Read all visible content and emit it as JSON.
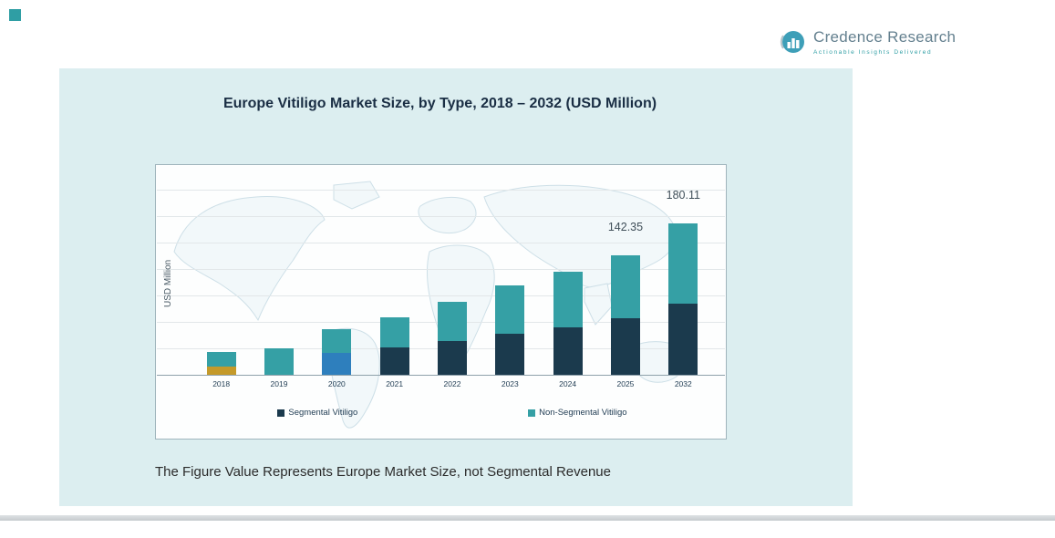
{
  "logo": {
    "name": "Credence Research",
    "tagline": "Actionable Insights Delivered"
  },
  "note": {
    "text": "The Figure Value Represents Europe Market Size, not Segmental Revenue"
  },
  "colors": {
    "panel_background": "#dceef0",
    "accent_teal": "#2f9ea4",
    "segmental_navy": "#1b3a4d",
    "non_segmental_teal": "#35a0a5",
    "override_gold_2018": "#c49a2a",
    "override_blue_2020": "#2e7fbd"
  },
  "chart_data": {
    "type": "bar",
    "stacked": true,
    "title": "Europe Vitiligo Market Size, by Type, 2018 – 2032 (USD Million)",
    "ylabel": "USD Million",
    "xlabel": "",
    "ylim": [
      0,
      250
    ],
    "grid": true,
    "legend_position": "bottom",
    "categories": [
      "2018",
      "2019",
      "2020",
      "2021",
      "2022",
      "2023",
      "2024",
      "2025",
      "2032"
    ],
    "series": [
      {
        "name": "Segmental Vitiligo",
        "color": "#1b3a4d",
        "values": [
          10,
          0,
          26,
          33,
          40,
          49,
          57,
          67,
          85
        ]
      },
      {
        "name": "Non-Segmental Vitiligo",
        "color": "#35a0a5",
        "values": [
          17,
          31,
          28,
          35,
          47,
          57,
          66,
          75.35,
          95.11
        ]
      }
    ],
    "segment_color_overrides": [
      {
        "category": "2018",
        "series": "Segmental Vitiligo",
        "color": "#c49a2a"
      },
      {
        "category": "2020",
        "series": "Segmental Vitiligo",
        "color": "#2e7fbd"
      }
    ],
    "data_labels": [
      {
        "category": "2025",
        "value": "142.35"
      },
      {
        "category": "2032",
        "value": "180.11"
      }
    ]
  }
}
